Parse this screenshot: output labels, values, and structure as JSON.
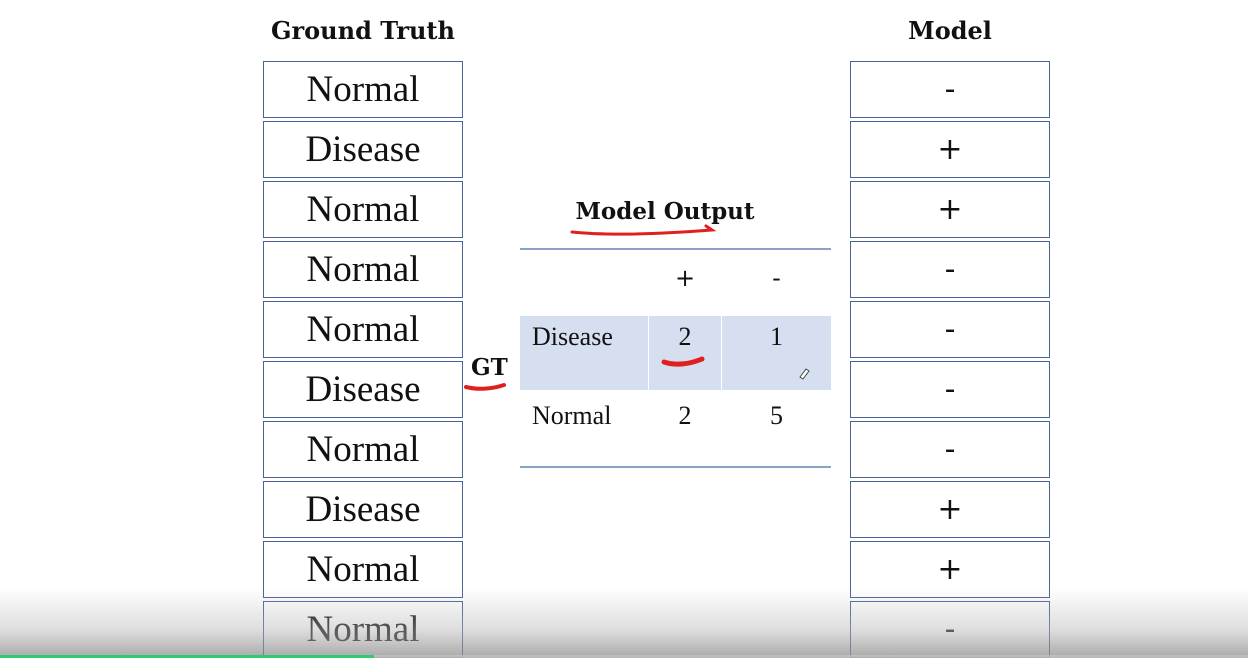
{
  "headings": {
    "ground_truth": "Ground Truth",
    "model": "Model",
    "model_output": "Model Output",
    "gt": "GT"
  },
  "ground_truth": [
    "Normal",
    "Disease",
    "Normal",
    "Normal",
    "Normal",
    "Disease",
    "Normal",
    "Disease",
    "Normal",
    "Normal"
  ],
  "model": [
    "-",
    "+",
    "+",
    "-",
    "-",
    "-",
    "-",
    "+",
    "+",
    "-"
  ],
  "matrix": {
    "header": [
      "",
      "+",
      "-"
    ],
    "rows": [
      {
        "label": "Disease",
        "values": [
          "2",
          "1"
        ]
      },
      {
        "label": "Normal",
        "values": [
          "2",
          "5"
        ]
      }
    ]
  },
  "colors": {
    "cell_border": "#4a6396",
    "highlight_row": "#d6dff0",
    "annotation_red": "#e0201f",
    "progress": "#2ecc71"
  },
  "video_progress": 0.3
}
